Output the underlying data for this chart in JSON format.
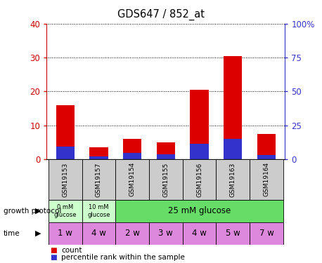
{
  "title": "GDS647 / 852_at",
  "samples": [
    "GSM19153",
    "GSM19157",
    "GSM19154",
    "GSM19155",
    "GSM19156",
    "GSM19163",
    "GSM19164"
  ],
  "count_values": [
    16,
    3.5,
    6,
    5,
    20.5,
    30.5,
    7.5
  ],
  "percentile_values": [
    9.5,
    2.0,
    4.5,
    3.5,
    11.5,
    15.0,
    3.0
  ],
  "left_ylim": [
    0,
    40
  ],
  "right_ylim": [
    0,
    100
  ],
  "left_yticks": [
    0,
    10,
    20,
    30,
    40
  ],
  "right_yticks": [
    0,
    25,
    50,
    75,
    100
  ],
  "right_yticklabels": [
    "0",
    "25",
    "50",
    "75",
    "100%"
  ],
  "bar_color_red": "#dd0000",
  "bar_color_blue": "#3333cc",
  "time_labels": [
    "1 w",
    "4 w",
    "2 w",
    "3 w",
    "4 w",
    "5 w",
    "7 w"
  ],
  "sample_bg_color": "#cccccc",
  "left_tick_color": "#cc0000",
  "right_tick_color": "#3333cc",
  "grid_color": "#000000",
  "label_growth_protocol": "growth protocol",
  "label_time": "time",
  "legend_count": "count",
  "legend_percentile": "percentile rank within the sample",
  "green_light": "#ccffcc",
  "green_dark": "#66dd66",
  "pink": "#dd88dd",
  "white": "#ffffff"
}
